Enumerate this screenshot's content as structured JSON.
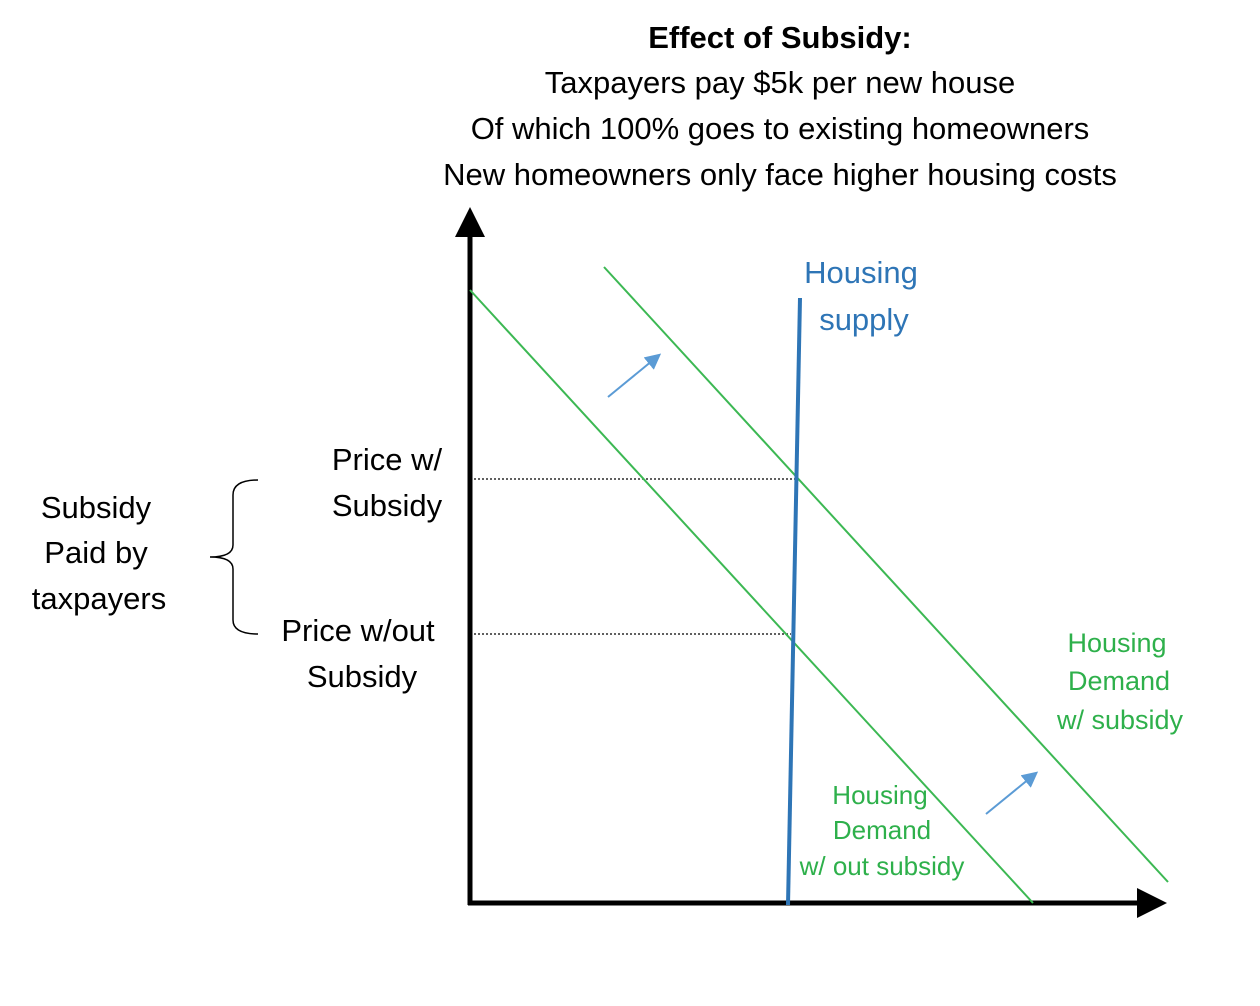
{
  "title": "Effect of Subsidy:",
  "subtitle_lines": [
    "Taxpayers pay $5k per new house",
    "Of which 100% goes to existing homeowners",
    "New homeowners only face higher housing costs"
  ],
  "labels": {
    "supply": [
      "Housing",
      "supply"
    ],
    "demand_with": [
      "Housing",
      "Demand",
      "w/ subsidy"
    ],
    "demand_without": [
      "Housing",
      "Demand",
      "w/ out subsidy"
    ],
    "price_with": [
      "Price w/",
      "Subsidy"
    ],
    "price_without": [
      "Price w/out",
      "Subsidy"
    ],
    "bracket": [
      "Subsidy",
      "Paid by",
      "taxpayers"
    ]
  }
}
